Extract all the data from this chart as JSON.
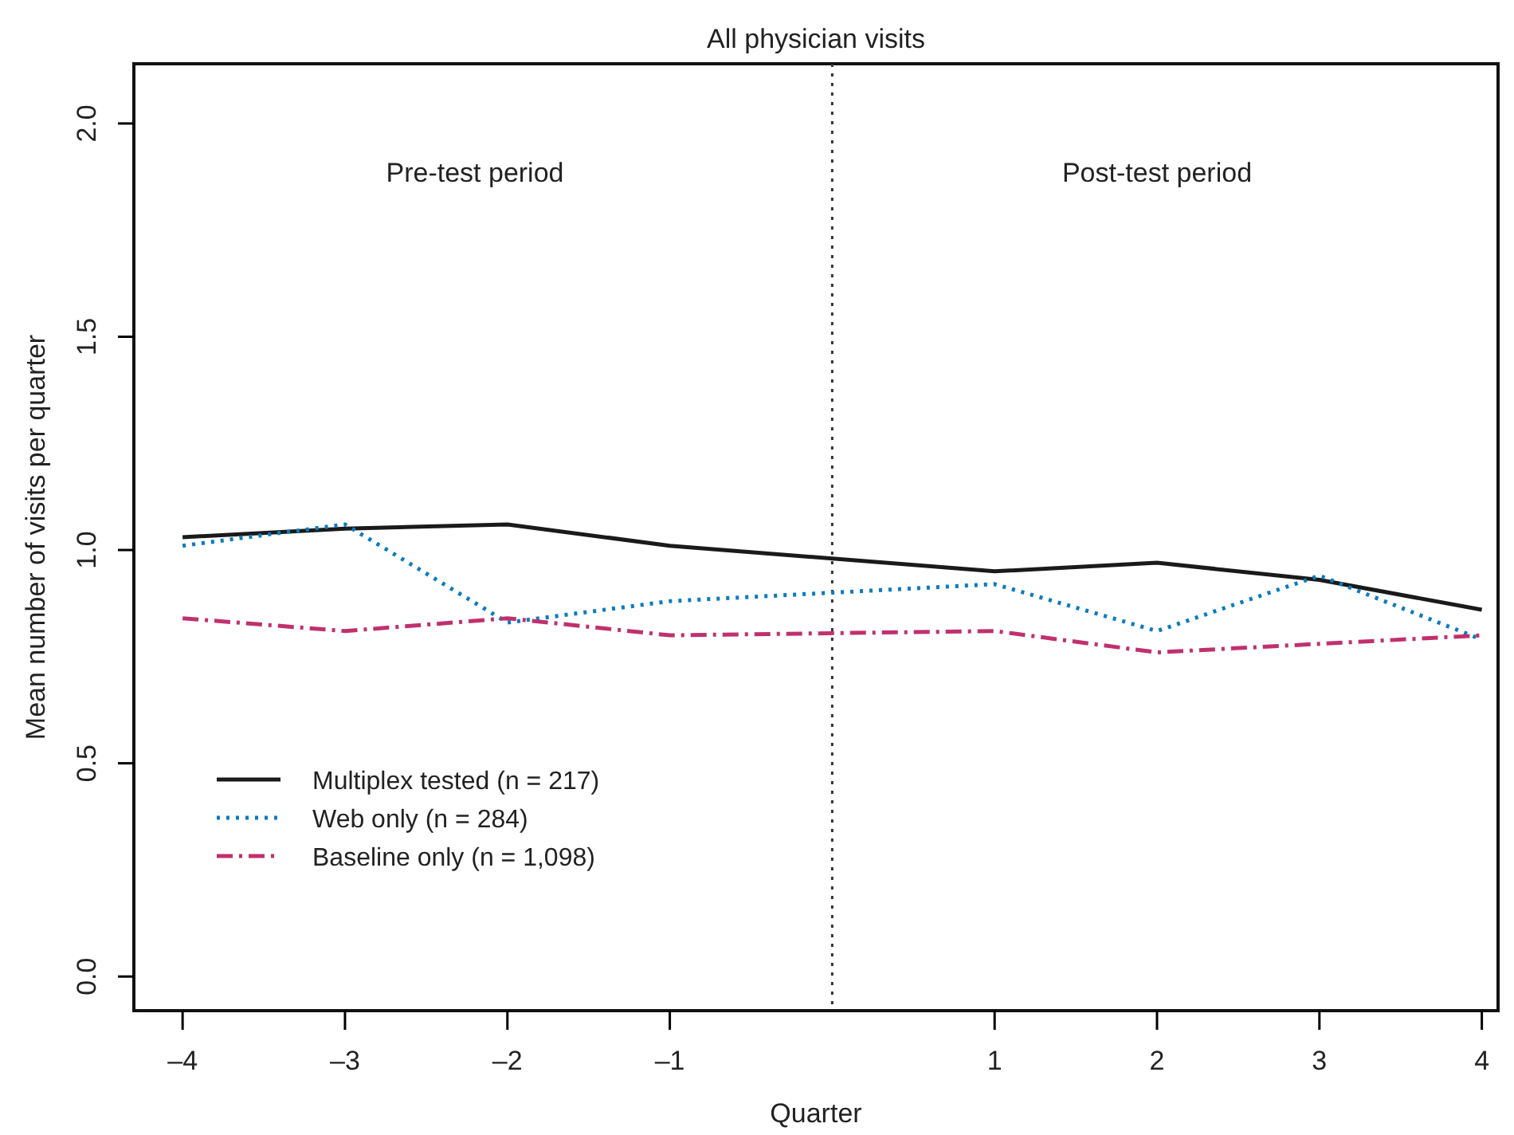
{
  "chart_data": {
    "type": "line",
    "title": "All physician visits",
    "xlabel": "Quarter",
    "ylabel": "Mean number of visits per quarter",
    "x": [
      -4,
      -3,
      -2,
      -1,
      1,
      2,
      3,
      4
    ],
    "xlim": [
      -4.3,
      4.1
    ],
    "xticks": [
      {
        "value": -4,
        "label": "–4"
      },
      {
        "value": -3,
        "label": "–3"
      },
      {
        "value": -2,
        "label": "–2"
      },
      {
        "value": -1,
        "label": "–1"
      },
      1,
      2,
      3,
      4
    ],
    "ylim": [
      -0.08,
      2.14
    ],
    "yticks": [
      {
        "value": 0,
        "label": "0.0"
      },
      {
        "value": 0.5,
        "label": "0.5"
      },
      {
        "value": 1,
        "label": "1.0"
      },
      {
        "value": 1.5,
        "label": "1.5"
      },
      {
        "value": 2,
        "label": "2.0"
      }
    ],
    "series": [
      {
        "name": "Multiplex tested (n = 217)",
        "color": "#1a1a1a",
        "line_style": "solid",
        "values": [
          1.03,
          1.05,
          1.06,
          1.01,
          0.95,
          0.97,
          0.93,
          0.86
        ]
      },
      {
        "name": "Web only (n = 284)",
        "color": "#0a7bc1",
        "line_style": "dotted",
        "values": [
          1.01,
          1.06,
          0.83,
          0.88,
          0.92,
          0.81,
          0.94,
          0.79
        ]
      },
      {
        "name": "Baseline only (n = 1,098)",
        "color": "#c0306e",
        "line_style": "dashdot",
        "values": [
          0.84,
          0.81,
          0.84,
          0.8,
          0.81,
          0.76,
          0.78,
          0.8
        ]
      }
    ],
    "ref_lines": [
      {
        "axis": "x",
        "value": 0,
        "color": "#333333",
        "line_style": "dotted"
      }
    ],
    "annotations": [
      "Pre-test period",
      "Post-test period"
    ],
    "legend": "bottom left",
    "grid": false,
    "marker": "none"
  }
}
